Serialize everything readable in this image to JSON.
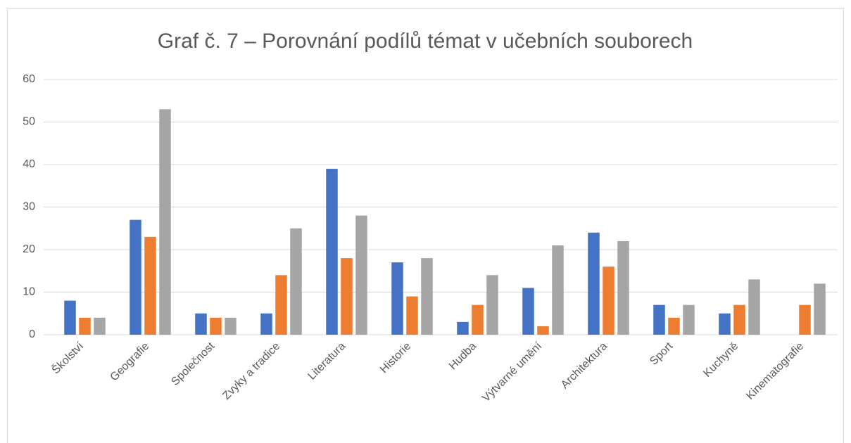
{
  "chart_data": {
    "type": "bar",
    "title": "Graf č. 7 – Porovnání podílů témat v učebních souborech",
    "categories": [
      "Školství",
      "Geografie",
      "Společnost",
      "Zvyky a tradice",
      "Literatura",
      "Historie",
      "Hudba",
      "Výtvarné umění",
      "Architektura",
      "Sport",
      "Kuchyně",
      "Kinematografie"
    ],
    "series": [
      {
        "color": "#4472c4",
        "values": [
          8,
          27,
          5,
          5,
          39,
          17,
          3,
          11,
          24,
          7,
          5,
          0
        ]
      },
      {
        "color": "#ed7d31",
        "values": [
          4,
          23,
          4,
          14,
          18,
          9,
          7,
          2,
          16,
          4,
          7,
          7
        ]
      },
      {
        "color": "#a5a5a5",
        "values": [
          4,
          53,
          4,
          25,
          28,
          18,
          14,
          21,
          22,
          7,
          13,
          12
        ]
      }
    ],
    "ylim": [
      0,
      60
    ],
    "yticks": [
      0,
      10,
      20,
      30,
      40,
      50,
      60
    ],
    "grid": true
  }
}
